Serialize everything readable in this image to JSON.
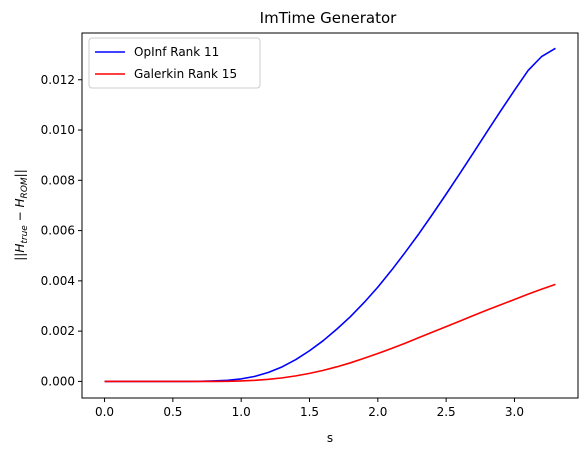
{
  "chart_data": {
    "type": "line",
    "title": "ImTime Generator",
    "xlabel": "s",
    "ylabel": "||H_true − H_ROM||",
    "ylabel_parts": {
      "open": "||",
      "h1": "H",
      "sub1": "true",
      "minus": " − ",
      "h2": "H",
      "sub2": "ROM",
      "close": "||"
    },
    "xlim": [
      -0.165,
      3.465
    ],
    "ylim": [
      -0.00066,
      0.01386
    ],
    "xticks": [
      0.0,
      0.5,
      1.0,
      1.5,
      2.0,
      2.5,
      3.0
    ],
    "xtick_labels": [
      "0.0",
      "0.5",
      "1.0",
      "1.5",
      "2.0",
      "2.5",
      "3.0"
    ],
    "yticks": [
      0.0,
      0.002,
      0.004,
      0.006,
      0.008,
      0.01,
      0.012
    ],
    "ytick_labels": [
      "0.000",
      "0.002",
      "0.004",
      "0.006",
      "0.008",
      "0.010",
      "0.012"
    ],
    "grid": false,
    "legend_position": "top-left",
    "series": [
      {
        "name": "OpInf Rank 11",
        "color": "#0000ff",
        "x": [
          0.0,
          0.3,
          0.6,
          0.7,
          0.8,
          0.9,
          1.0,
          1.1,
          1.2,
          1.3,
          1.4,
          1.5,
          1.6,
          1.7,
          1.8,
          1.9,
          2.0,
          2.1,
          2.2,
          2.3,
          2.4,
          2.5,
          2.6,
          2.7,
          2.8,
          2.9,
          3.0,
          3.1,
          3.2,
          3.3
        ],
        "y": [
          0.0,
          0.0,
          0.0,
          5e-06,
          2e-05,
          4.5e-05,
          0.0001,
          0.0002,
          0.00036,
          0.00058,
          0.00087,
          0.00122,
          0.00162,
          0.00208,
          0.00258,
          0.00314,
          0.00375,
          0.00442,
          0.00513,
          0.00587,
          0.00665,
          0.00745,
          0.00827,
          0.0091,
          0.00994,
          0.01077,
          0.01158,
          0.01237,
          0.01293,
          0.01325
        ]
      },
      {
        "name": "Galerkin Rank 15",
        "color": "#ff0000",
        "x": [
          0.0,
          0.3,
          0.6,
          0.8,
          0.9,
          1.0,
          1.1,
          1.2,
          1.3,
          1.4,
          1.5,
          1.6,
          1.7,
          1.8,
          1.9,
          2.0,
          2.1,
          2.2,
          2.3,
          2.4,
          2.5,
          2.6,
          2.7,
          2.8,
          2.9,
          3.0,
          3.1,
          3.2,
          3.3
        ],
        "y": [
          0.0,
          0.0,
          0.0,
          0.0,
          5e-06,
          2e-05,
          4.5e-05,
          8.5e-05,
          0.00014,
          0.00022,
          0.00032,
          0.00044,
          0.00058,
          0.00074,
          0.00092,
          0.00111,
          0.00131,
          0.00152,
          0.00174,
          0.00196,
          0.00218,
          0.0024,
          0.00262,
          0.00284,
          0.00305,
          0.00326,
          0.00347,
          0.00367,
          0.00386
        ]
      }
    ]
  }
}
